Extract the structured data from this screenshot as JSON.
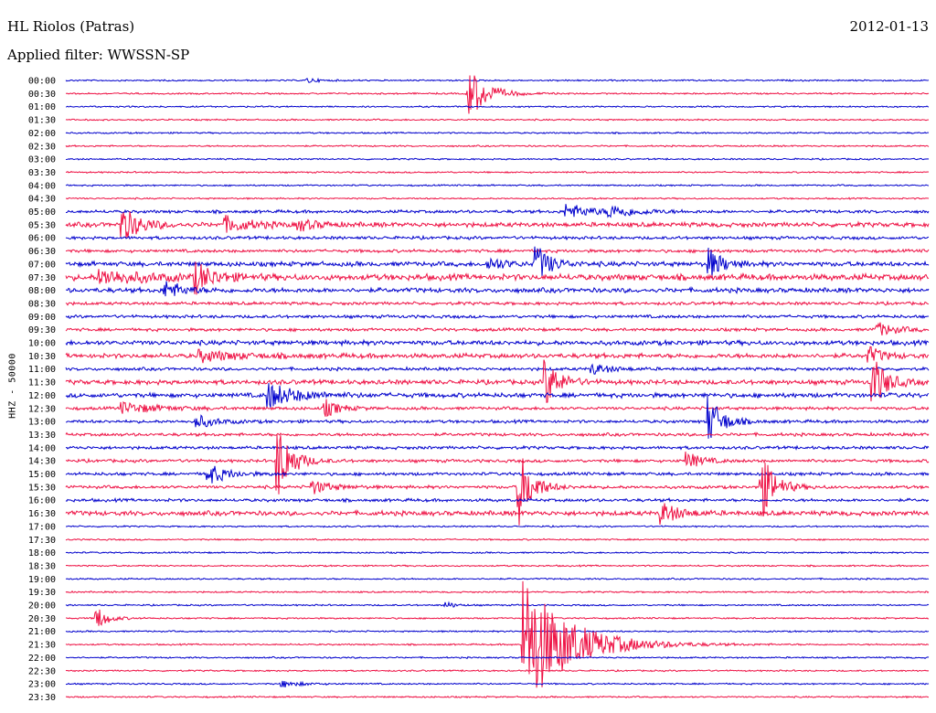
{
  "header": {
    "station": "HL Riolos (Patras)",
    "date": "2012-01-13",
    "filter": "Applied filter: WWSSN-SP"
  },
  "chart_data": {
    "type": "line",
    "title": "HL Riolos (Patras)",
    "subtitle": "Applied filter: WWSSN-SP",
    "date": "2012-01-13",
    "ylabel": "HHZ - 50000",
    "xlabel": "",
    "grid": false,
    "colors": {
      "even": "#0000cc",
      "odd": "#ee1144"
    },
    "tick_labels": [
      "00:00",
      "00:30",
      "01:00",
      "01:30",
      "02:00",
      "02:30",
      "03:00",
      "03:30",
      "04:00",
      "04:30",
      "05:00",
      "05:30",
      "06:00",
      "06:30",
      "07:00",
      "07:30",
      "08:00",
      "08:30",
      "09:00",
      "09:30",
      "10:00",
      "10:30",
      "11:00",
      "11:30",
      "12:00",
      "12:30",
      "13:00",
      "13:30",
      "14:00",
      "14:30",
      "15:00",
      "15:30",
      "16:00",
      "16:30",
      "17:00",
      "17:30",
      "18:00",
      "18:30",
      "19:00",
      "19:30",
      "20:00",
      "20:30",
      "21:00",
      "21:30",
      "22:00",
      "22:30",
      "23:00",
      "23:30"
    ],
    "noise": [
      1,
      1,
      1,
      1,
      1,
      1,
      1,
      1,
      1,
      1,
      2,
      3,
      2,
      2,
      3,
      4,
      3,
      2,
      2,
      2,
      3,
      3,
      2,
      3,
      3,
      2,
      2,
      2,
      2,
      2,
      2,
      2,
      2,
      3,
      1,
      1,
      1,
      1,
      1,
      1,
      1,
      1,
      1,
      1,
      1,
      1,
      1,
      1
    ],
    "events": [
      {
        "row": 0,
        "t": 0.28,
        "amp": 3,
        "dur": 0.01
      },
      {
        "row": 1,
        "t": 0.465,
        "amp": 32,
        "dur": 0.02
      },
      {
        "row": 10,
        "t": 0.58,
        "amp": 8,
        "dur": 0.03
      },
      {
        "row": 10,
        "t": 0.63,
        "amp": 6,
        "dur": 0.03
      },
      {
        "row": 11,
        "t": 0.065,
        "amp": 20,
        "dur": 0.02
      },
      {
        "row": 11,
        "t": 0.185,
        "amp": 8,
        "dur": 0.03
      },
      {
        "row": 11,
        "t": 0.27,
        "amp": 6,
        "dur": 0.02
      },
      {
        "row": 14,
        "t": 0.545,
        "amp": 22,
        "dur": 0.015
      },
      {
        "row": 14,
        "t": 0.745,
        "amp": 18,
        "dur": 0.015
      },
      {
        "row": 14,
        "t": 0.49,
        "amp": 7,
        "dur": 0.02
      },
      {
        "row": 15,
        "t": 0.15,
        "amp": 16,
        "dur": 0.02
      },
      {
        "row": 15,
        "t": 0.04,
        "amp": 8,
        "dur": 0.05
      },
      {
        "row": 16,
        "t": 0.115,
        "amp": 10,
        "dur": 0.02
      },
      {
        "row": 19,
        "t": 0.94,
        "amp": 8,
        "dur": 0.02
      },
      {
        "row": 21,
        "t": 0.155,
        "amp": 6,
        "dur": 0.04
      },
      {
        "row": 21,
        "t": 0.93,
        "amp": 10,
        "dur": 0.015
      },
      {
        "row": 22,
        "t": 0.61,
        "amp": 6,
        "dur": 0.02
      },
      {
        "row": 23,
        "t": 0.555,
        "amp": 28,
        "dur": 0.015
      },
      {
        "row": 23,
        "t": 0.935,
        "amp": 30,
        "dur": 0.015
      },
      {
        "row": 24,
        "t": 0.235,
        "amp": 14,
        "dur": 0.03
      },
      {
        "row": 25,
        "t": 0.065,
        "amp": 6,
        "dur": 0.04
      },
      {
        "row": 25,
        "t": 0.3,
        "amp": 10,
        "dur": 0.015
      },
      {
        "row": 26,
        "t": 0.745,
        "amp": 28,
        "dur": 0.015
      },
      {
        "row": 26,
        "t": 0.15,
        "amp": 8,
        "dur": 0.02
      },
      {
        "row": 29,
        "t": 0.245,
        "amp": 45,
        "dur": 0.015
      },
      {
        "row": 29,
        "t": 0.72,
        "amp": 10,
        "dur": 0.015
      },
      {
        "row": 30,
        "t": 0.165,
        "amp": 12,
        "dur": 0.02
      },
      {
        "row": 31,
        "t": 0.525,
        "amp": 42,
        "dur": 0.015
      },
      {
        "row": 31,
        "t": 0.805,
        "amp": 40,
        "dur": 0.015
      },
      {
        "row": 31,
        "t": 0.285,
        "amp": 8,
        "dur": 0.02
      },
      {
        "row": 33,
        "t": 0.69,
        "amp": 12,
        "dur": 0.02
      },
      {
        "row": 41,
        "t": 0.035,
        "amp": 14,
        "dur": 0.012
      },
      {
        "row": 43,
        "t": 0.53,
        "amp": 75,
        "dur": 0.05
      },
      {
        "row": 40,
        "t": 0.44,
        "amp": 4,
        "dur": 0.01
      },
      {
        "row": 46,
        "t": 0.25,
        "amp": 4,
        "dur": 0.02
      }
    ]
  }
}
